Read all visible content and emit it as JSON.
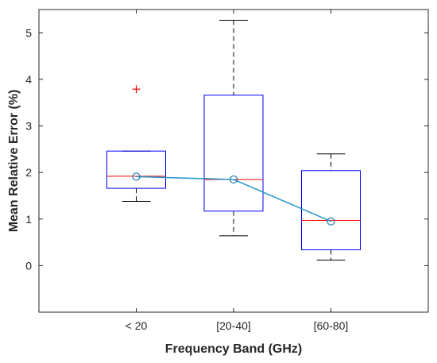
{
  "chart_data": {
    "type": "box",
    "xlabel": "Frequency Band (GHz)",
    "ylabel": "Mean Relative Error (%)",
    "categories": [
      "< 20",
      "[20-40]",
      "[60-80]"
    ],
    "ylim": [
      -1,
      5.5
    ],
    "yticks": [
      0,
      1,
      2,
      3,
      4,
      5
    ],
    "grid": false,
    "boxes": [
      {
        "category": "< 20",
        "whisker_low": 1.38,
        "q1": 1.66,
        "median": 1.92,
        "q3": 2.46,
        "whisker_high": 2.46,
        "outliers": [
          3.79
        ],
        "mean": 1.91
      },
      {
        "category": "[20-40]",
        "whisker_low": 0.64,
        "q1": 1.17,
        "median": 1.85,
        "q3": 3.66,
        "whisker_high": 5.27,
        "outliers": [],
        "mean": 1.85
      },
      {
        "category": "[60-80]",
        "whisker_low": 0.12,
        "q1": 0.34,
        "median": 0.97,
        "q3": 2.04,
        "whisker_high": 2.4,
        "outliers": [],
        "mean": 0.95
      }
    ],
    "series": [
      {
        "values": [
          1.91,
          1.85,
          0.95
        ]
      }
    ],
    "colors": {
      "box": "#0000ff",
      "median": "#ff0000",
      "whisker": "#000000",
      "outlier": "#ff0000",
      "mean_line": "#2196c9",
      "mean_marker": "#1f77b4",
      "axes": "#262626"
    }
  }
}
